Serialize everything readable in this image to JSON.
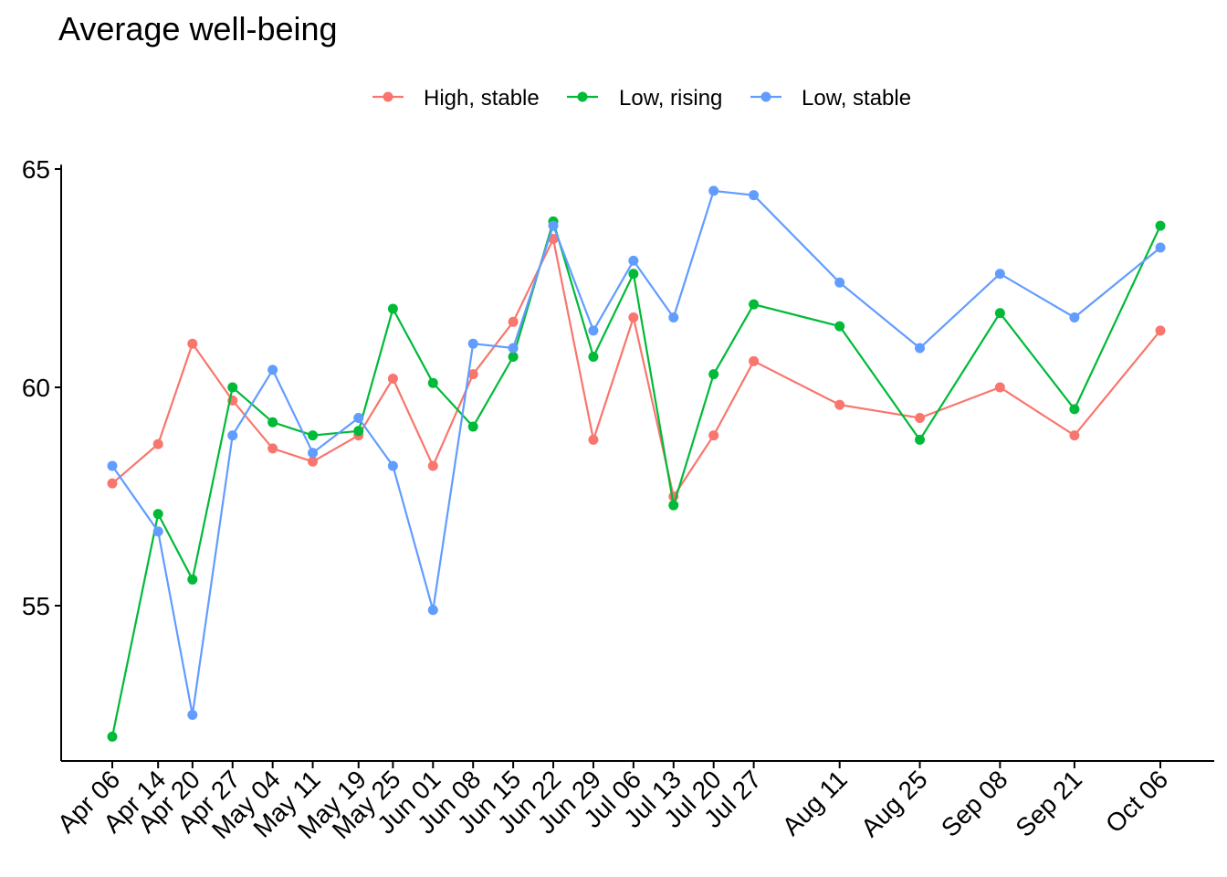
{
  "chart_data": {
    "type": "line",
    "title": "Average well-being",
    "xlabel": "",
    "ylabel": "",
    "legend_position": "top",
    "grid": false,
    "x": [
      "2020-04-06",
      "2020-04-14",
      "2020-04-20",
      "2020-04-27",
      "2020-05-04",
      "2020-05-11",
      "2020-05-19",
      "2020-05-25",
      "2020-06-01",
      "2020-06-08",
      "2020-06-15",
      "2020-06-22",
      "2020-06-29",
      "2020-07-06",
      "2020-07-13",
      "2020-07-20",
      "2020-07-27",
      "2020-08-11",
      "2020-08-25",
      "2020-09-08",
      "2020-09-21",
      "2020-10-06"
    ],
    "x_tick_labels": [
      "Apr 06",
      "Apr 14",
      "Apr 20",
      "Apr 27",
      "May 04",
      "May 11",
      "May 19",
      "May 25",
      "Jun 01",
      "Jun 08",
      "Jun 15",
      "Jun 22",
      "Jun 29",
      "Jul 06",
      "Jul 13",
      "Jul 20",
      "Jul 27",
      "Aug 11",
      "Aug 25",
      "Sep 08",
      "Sep 21",
      "Oct 06"
    ],
    "y_ticks": [
      55,
      60,
      65
    ],
    "ylim": [
      51.7,
      65.1
    ],
    "series": [
      {
        "name": "High, stable",
        "color": "#F8766D",
        "values": [
          57.8,
          58.7,
          61.0,
          59.7,
          58.6,
          58.3,
          58.9,
          60.2,
          58.2,
          60.3,
          61.5,
          63.4,
          58.8,
          61.6,
          57.5,
          58.9,
          60.6,
          59.6,
          59.3,
          60.0,
          58.9,
          61.3
        ]
      },
      {
        "name": "Low, rising",
        "color": "#00BA38",
        "values": [
          52.0,
          57.1,
          55.6,
          60.0,
          59.2,
          58.9,
          59.0,
          61.8,
          60.1,
          59.1,
          60.7,
          63.8,
          60.7,
          62.6,
          57.3,
          60.3,
          61.9,
          61.4,
          58.8,
          61.7,
          59.5,
          63.7
        ]
      },
      {
        "name": "Low, stable",
        "color": "#619CFF",
        "values": [
          58.2,
          56.7,
          52.5,
          58.9,
          60.4,
          58.5,
          59.3,
          58.2,
          54.9,
          61.0,
          60.9,
          63.7,
          61.3,
          62.9,
          61.6,
          64.5,
          64.4,
          62.4,
          60.9,
          62.6,
          61.6,
          63.2
        ]
      }
    ]
  }
}
